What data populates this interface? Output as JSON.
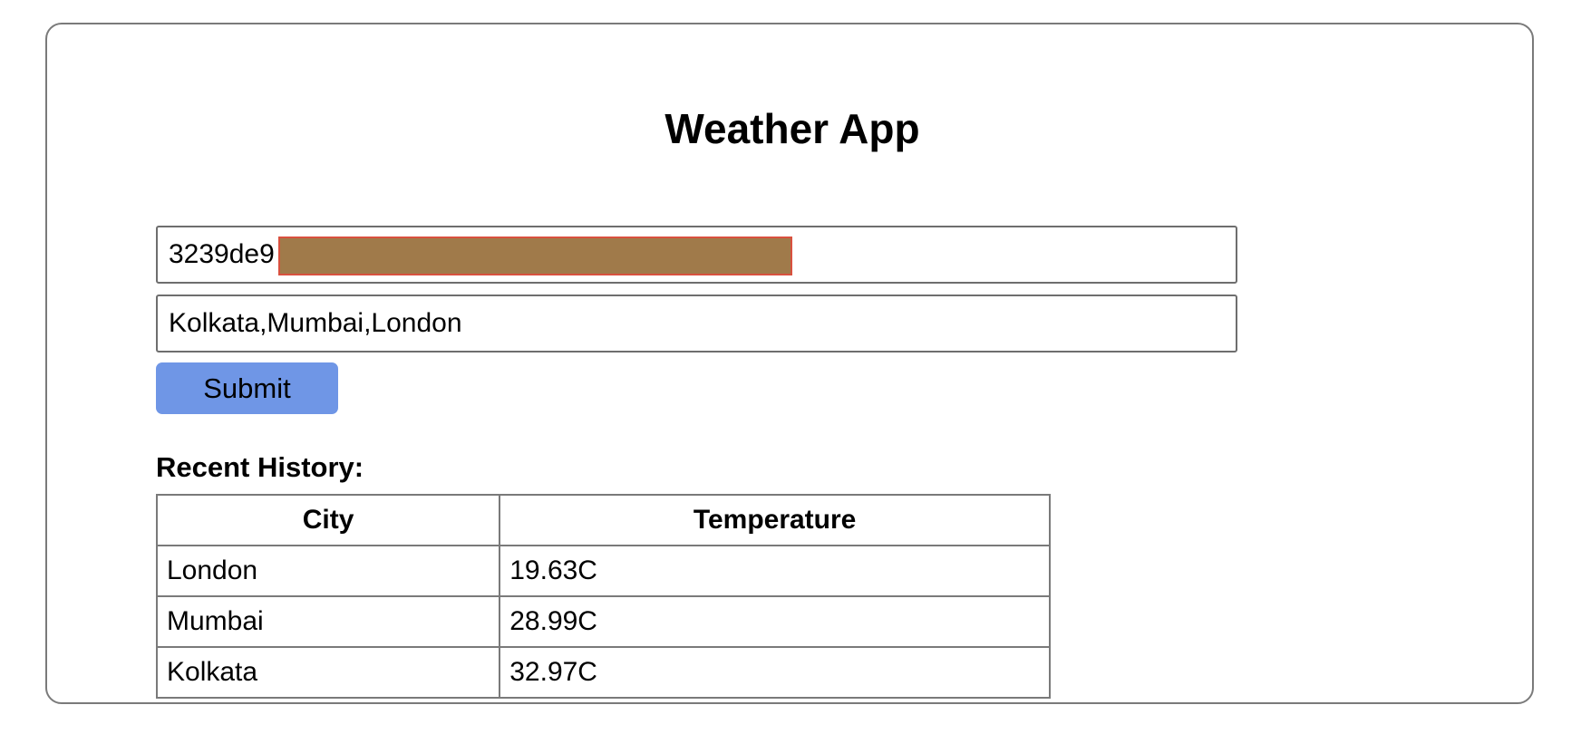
{
  "app": {
    "title": "Weather App"
  },
  "form": {
    "api_key_value": "3239de9",
    "cities_value": "Kolkata,Mumbai,London",
    "submit_label": "Submit"
  },
  "history": {
    "heading": "Recent History:",
    "columns": [
      "City",
      "Temperature"
    ],
    "rows": [
      {
        "city": "London",
        "temperature": "19.63C"
      },
      {
        "city": "Mumbai",
        "temperature": "28.99C"
      },
      {
        "city": "Kolkata",
        "temperature": "32.97C"
      }
    ]
  },
  "colors": {
    "submit_background": "#6f96e6",
    "redaction_fill": "#a07a4a",
    "border": "#7a7a7a"
  }
}
